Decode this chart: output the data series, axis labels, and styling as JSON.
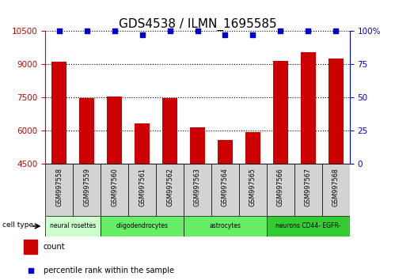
{
  "title": "GDS4538 / ILMN_1695585",
  "samples": [
    "GSM997558",
    "GSM997559",
    "GSM997560",
    "GSM997561",
    "GSM997562",
    "GSM997563",
    "GSM997564",
    "GSM997565",
    "GSM997566",
    "GSM997567",
    "GSM997568"
  ],
  "counts": [
    9100,
    7450,
    7520,
    6320,
    7450,
    6150,
    5580,
    5930,
    9150,
    9550,
    9250
  ],
  "percentile_ranks": [
    100,
    100,
    100,
    97,
    100,
    100,
    97,
    97,
    100,
    100,
    100
  ],
  "bar_color": "#cc0000",
  "dot_color": "#0000cc",
  "ylim_left": [
    4500,
    10500
  ],
  "yticks_left": [
    4500,
    6000,
    7500,
    9000,
    10500
  ],
  "ylim_right": [
    0,
    100
  ],
  "yticks_right": [
    0,
    25,
    50,
    75,
    100
  ],
  "cell_groups": [
    {
      "label": "neural rosettes",
      "span": 2,
      "color": "#ccffcc"
    },
    {
      "label": "oligodendrocytes",
      "span": 3,
      "color": "#66ee66"
    },
    {
      "label": "astrocytes",
      "span": 3,
      "color": "#66ee66"
    },
    {
      "label": "neurons CD44- EGFR-",
      "span": 3,
      "color": "#33cc33"
    }
  ],
  "legend_count_label": "count",
  "legend_percentile_label": "percentile rank within the sample",
  "cell_type_label": "cell type",
  "title_fontsize": 11,
  "axis_tick_color_left": "#cc0000",
  "axis_tick_color_right": "#0000cc",
  "sample_box_color": "#d3d3d3",
  "bar_width": 0.55
}
